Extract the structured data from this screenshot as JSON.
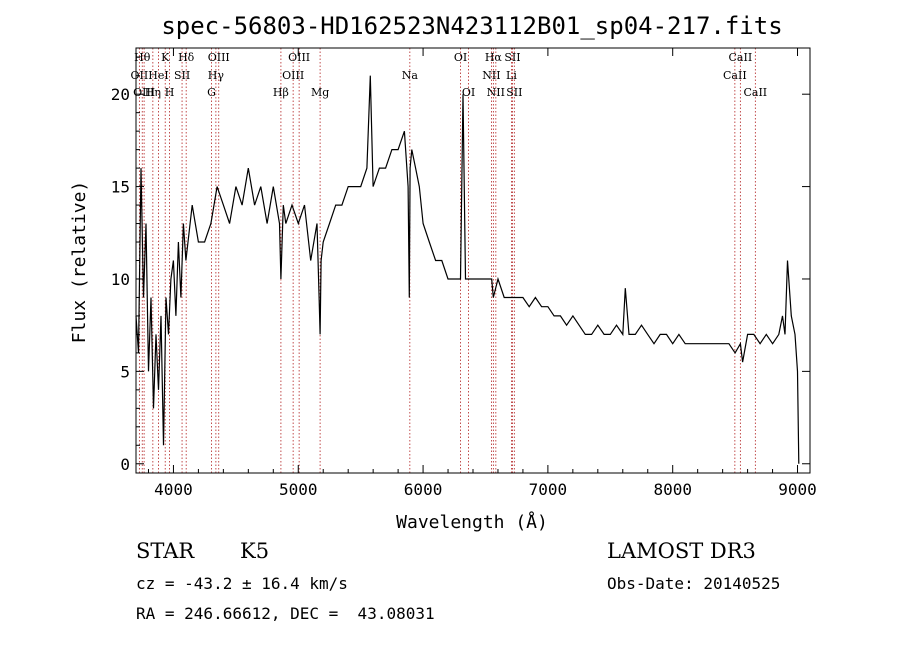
{
  "chart_data": {
    "type": "line",
    "title": "spec-56803-HD162523N423112B01_sp04-217.fits",
    "xlabel": "Wavelength (Å)",
    "ylabel": "Flux (relative)",
    "xlim": [
      3700,
      9100
    ],
    "ylim": [
      -0.5,
      22.5
    ],
    "x_ticks": [
      4000,
      5000,
      6000,
      7000,
      8000,
      9000
    ],
    "y_ticks": [
      0,
      5,
      10,
      15,
      20
    ],
    "grid": false,
    "line_color": "#000000",
    "marker_color": "#b22222",
    "series": [
      {
        "name": "flux",
        "x": [
          3700,
          3720,
          3740,
          3760,
          3780,
          3800,
          3820,
          3840,
          3860,
          3880,
          3900,
          3920,
          3940,
          3960,
          3980,
          4000,
          4020,
          4040,
          4060,
          4080,
          4100,
          4150,
          4200,
          4250,
          4300,
          4350,
          4400,
          4450,
          4500,
          4550,
          4600,
          4650,
          4700,
          4750,
          4800,
          4850,
          4861,
          4880,
          4900,
          4950,
          5000,
          5050,
          5100,
          5150,
          5167,
          5175,
          5183,
          5200,
          5250,
          5300,
          5350,
          5400,
          5450,
          5500,
          5550,
          5577,
          5600,
          5650,
          5700,
          5750,
          5800,
          5850,
          5880,
          5890,
          5896,
          5910,
          5940,
          5970,
          6000,
          6050,
          6100,
          6150,
          6200,
          6250,
          6300,
          6320,
          6340,
          6364,
          6400,
          6450,
          6500,
          6550,
          6563,
          6600,
          6650,
          6700,
          6750,
          6800,
          6850,
          6900,
          6950,
          7000,
          7050,
          7100,
          7150,
          7200,
          7250,
          7300,
          7350,
          7400,
          7450,
          7500,
          7550,
          7600,
          7620,
          7650,
          7700,
          7750,
          7800,
          7850,
          7900,
          7950,
          8000,
          8050,
          8100,
          8150,
          8200,
          8250,
          8300,
          8350,
          8400,
          8450,
          8500,
          8542,
          8560,
          8600,
          8650,
          8700,
          8750,
          8800,
          8850,
          8880,
          8900,
          8920,
          8950,
          8980,
          9000,
          9010
        ],
        "y": [
          8,
          6,
          16,
          9,
          13,
          5,
          9,
          3,
          7,
          4,
          8,
          1,
          9,
          7,
          10,
          11,
          8,
          12,
          9,
          13,
          11,
          14,
          12,
          12,
          13,
          15,
          14,
          13,
          15,
          14,
          16,
          14,
          15,
          13,
          15,
          13,
          10,
          14,
          13,
          14,
          13,
          14,
          11,
          13,
          9,
          7,
          11,
          12,
          13,
          14,
          14,
          15,
          15,
          15,
          16,
          21,
          15,
          16,
          16,
          17,
          17,
          18,
          15,
          9,
          16,
          17,
          16,
          15,
          13,
          12,
          11,
          11,
          10,
          10,
          10,
          20,
          10,
          10,
          10,
          10,
          10,
          10,
          9,
          10,
          9,
          9,
          9,
          9,
          8.5,
          9,
          8.5,
          8.5,
          8,
          8,
          7.5,
          8,
          7.5,
          7,
          7,
          7.5,
          7,
          7,
          7.5,
          7,
          9.5,
          7,
          7,
          7.5,
          7,
          6.5,
          7,
          7,
          6.5,
          7,
          6.5,
          6.5,
          6.5,
          6.5,
          6.5,
          6.5,
          6.5,
          6.5,
          6,
          6.5,
          5.5,
          7,
          7,
          6.5,
          7,
          6.5,
          7,
          8,
          7,
          11,
          8,
          7,
          5,
          0
        ]
      }
    ],
    "lines": [
      {
        "name": "OII",
        "wl": 3727,
        "row": 1
      },
      {
        "name": "Hθ",
        "wl": 3750,
        "row": 0
      },
      {
        "name": "OIII",
        "wl": 3765,
        "row": 2
      },
      {
        "name": "Hη",
        "wl": 3835,
        "row": 2
      },
      {
        "name": "HeI",
        "wl": 3880,
        "row": 1
      },
      {
        "name": "K",
        "wl": 3934,
        "row": 0
      },
      {
        "name": "H",
        "wl": 3969,
        "row": 2
      },
      {
        "name": "SII",
        "wl": 4069,
        "row": 1
      },
      {
        "name": "Hδ",
        "wl": 4102,
        "row": 0
      },
      {
        "name": "G",
        "wl": 4305,
        "row": 2
      },
      {
        "name": "Hγ",
        "wl": 4340,
        "row": 1
      },
      {
        "name": "OIII",
        "wl": 4363,
        "row": 0
      },
      {
        "name": "Hβ",
        "wl": 4861,
        "row": 2
      },
      {
        "name": "OIII",
        "wl": 4959,
        "row": 1
      },
      {
        "name": "OIII",
        "wl": 5007,
        "row": 0
      },
      {
        "name": "Mg",
        "wl": 5175,
        "row": 2
      },
      {
        "name": "Na",
        "wl": 5894,
        "row": 1
      },
      {
        "name": "OI",
        "wl": 6300,
        "row": 0
      },
      {
        "name": "OI",
        "wl": 6364,
        "row": 2
      },
      {
        "name": "NII",
        "wl": 6548,
        "row": 1
      },
      {
        "name": "Hα",
        "wl": 6563,
        "row": 0
      },
      {
        "name": "NII",
        "wl": 6583,
        "row": 2
      },
      {
        "name": "SII",
        "wl": 6716,
        "row": 0
      },
      {
        "name": "Li",
        "wl": 6708,
        "row": 1
      },
      {
        "name": "SII",
        "wl": 6731,
        "row": 2
      },
      {
        "name": "CaII",
        "wl": 8498,
        "row": 1
      },
      {
        "name": "CaII",
        "wl": 8542,
        "row": 0
      },
      {
        "name": "CaII",
        "wl": 8662,
        "row": 2
      }
    ]
  },
  "info": {
    "object_type": "STAR",
    "subclass": "K5",
    "survey": "LAMOST DR3",
    "redshift": "cz = -43.2 ± 16.4 km/s",
    "obs_date": "Obs-Date: 20140525",
    "coords": "RA = 246.66612, DEC =  43.08031"
  }
}
